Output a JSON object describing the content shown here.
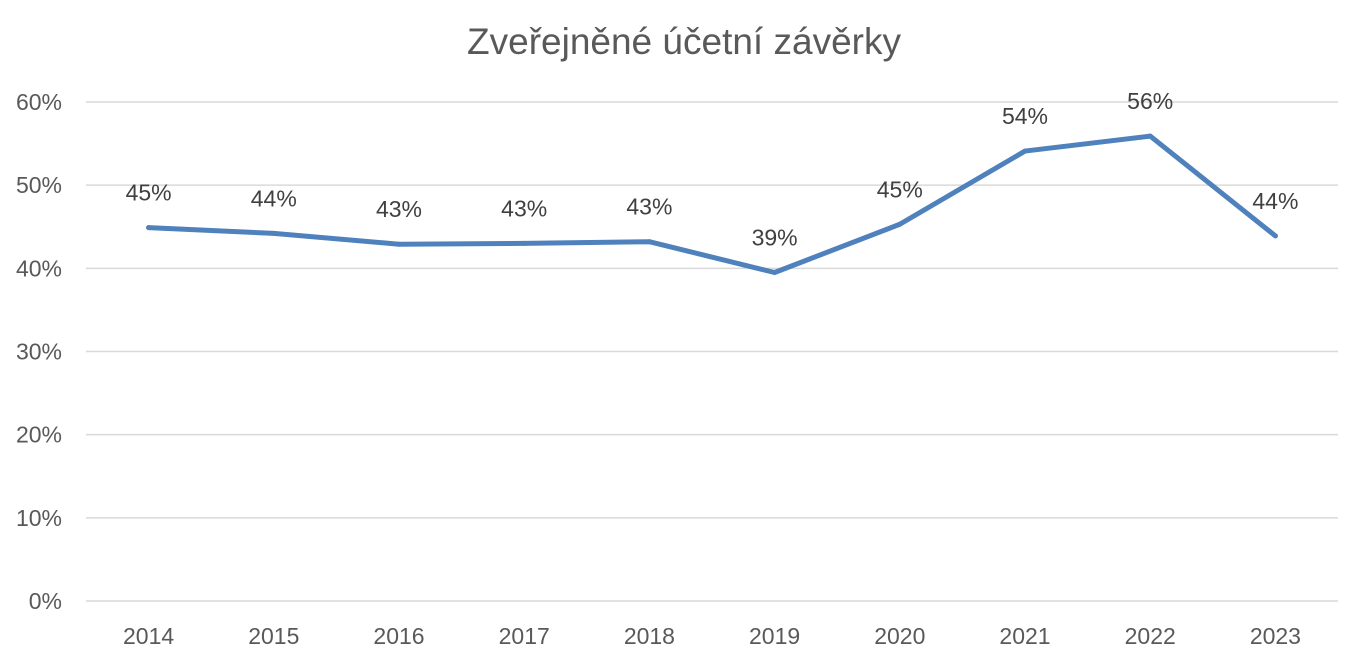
{
  "chart_data": {
    "type": "line",
    "title": "Zveřejněné účetní závěrky",
    "categories": [
      "2014",
      "2015",
      "2016",
      "2017",
      "2018",
      "2019",
      "2020",
      "2021",
      "2022",
      "2023"
    ],
    "series": [
      {
        "values": [
          0.449,
          0.442,
          0.429,
          0.43,
          0.432,
          0.395,
          0.453,
          0.541,
          0.559,
          0.439
        ],
        "data_labels": [
          "45%",
          "44%",
          "43%",
          "43%",
          "43%",
          "39%",
          "45%",
          "54%",
          "56%",
          "44%"
        ],
        "color": "#4f81bd"
      }
    ],
    "y_ticks": [
      {
        "value": 0,
        "label": "0%"
      },
      {
        "value": 0.1,
        "label": "10%"
      },
      {
        "value": 0.2,
        "label": "20%"
      },
      {
        "value": 0.3,
        "label": "30%"
      },
      {
        "value": 0.4,
        "label": "40%"
      },
      {
        "value": 0.5,
        "label": "50%"
      },
      {
        "value": 0.6,
        "label": "60%"
      }
    ],
    "ylim": [
      0,
      0.6
    ],
    "grid": true,
    "legend": "none",
    "colors": {
      "grid": "#d9d9d9",
      "text": "#595959",
      "series": "#4f81bd"
    }
  }
}
